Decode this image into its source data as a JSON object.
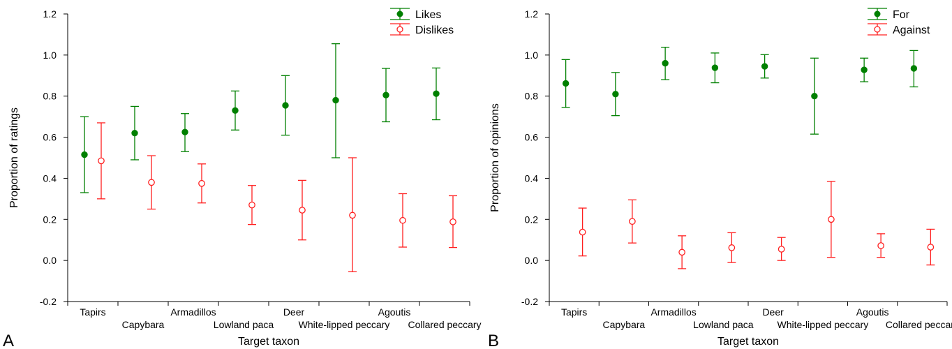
{
  "chart_data": [
    {
      "type": "scatter",
      "panel_label": "A",
      "xlabel": "Target taxon",
      "ylabel": "Proportion of ratings",
      "ylim": [
        -0.2,
        1.2
      ],
      "yticks": [
        "-0.2",
        "0.0",
        "0.2",
        "0.4",
        "0.6",
        "0.8",
        "1.0",
        "1.2"
      ],
      "categories": [
        "Tapirs",
        "Capybara",
        "Armadillos",
        "Lowland paca",
        "Deer",
        "White-lipped peccary",
        "Agoutis",
        "Collared peccary"
      ],
      "grid": false,
      "legend_position": "top-right",
      "series": [
        {
          "name": "Likes",
          "color": "#008000",
          "marker": "filled-circle",
          "values": [
            0.515,
            0.62,
            0.625,
            0.73,
            0.755,
            0.78,
            0.805,
            0.812
          ],
          "lower": [
            0.33,
            0.49,
            0.53,
            0.635,
            0.61,
            0.5,
            0.675,
            0.685
          ],
          "upper": [
            0.7,
            0.75,
            0.715,
            0.825,
            0.9,
            1.055,
            0.935,
            0.937
          ]
        },
        {
          "name": "Dislikes",
          "color": "#ff2020",
          "marker": "open-circle",
          "values": [
            0.485,
            0.38,
            0.375,
            0.27,
            0.245,
            0.22,
            0.195,
            0.188
          ],
          "lower": [
            0.3,
            0.25,
            0.28,
            0.175,
            0.1,
            -0.055,
            0.065,
            0.063
          ],
          "upper": [
            0.67,
            0.51,
            0.47,
            0.365,
            0.39,
            0.5,
            0.325,
            0.315
          ]
        }
      ]
    },
    {
      "type": "scatter",
      "panel_label": "B",
      "xlabel": "Target taxon",
      "ylabel": "Proportion of opinions",
      "ylim": [
        -0.2,
        1.2
      ],
      "yticks": [
        "-0.2",
        "0.0",
        "0.2",
        "0.4",
        "0.6",
        "0.8",
        "1.0",
        "1.2"
      ],
      "categories": [
        "Tapirs",
        "Capybara",
        "Armadillos",
        "Lowland paca",
        "Deer",
        "White-lipped peccary",
        "Agoutis",
        "Collared peccary"
      ],
      "grid": false,
      "legend_position": "top-right",
      "series": [
        {
          "name": "For",
          "color": "#008000",
          "marker": "filled-circle",
          "values": [
            0.862,
            0.81,
            0.96,
            0.938,
            0.945,
            0.8,
            0.928,
            0.935
          ],
          "lower": [
            0.745,
            0.705,
            0.88,
            0.865,
            0.888,
            0.615,
            0.87,
            0.845
          ],
          "upper": [
            0.978,
            0.915,
            1.038,
            1.01,
            1.002,
            0.985,
            0.985,
            1.022
          ]
        },
        {
          "name": "Against",
          "color": "#ff2020",
          "marker": "open-circle",
          "values": [
            0.138,
            0.19,
            0.04,
            0.062,
            0.055,
            0.2,
            0.072,
            0.065
          ],
          "lower": [
            0.022,
            0.085,
            -0.04,
            -0.01,
            0.0,
            0.015,
            0.015,
            -0.022
          ],
          "upper": [
            0.255,
            0.295,
            0.12,
            0.135,
            0.112,
            0.385,
            0.13,
            0.152
          ]
        }
      ]
    }
  ]
}
